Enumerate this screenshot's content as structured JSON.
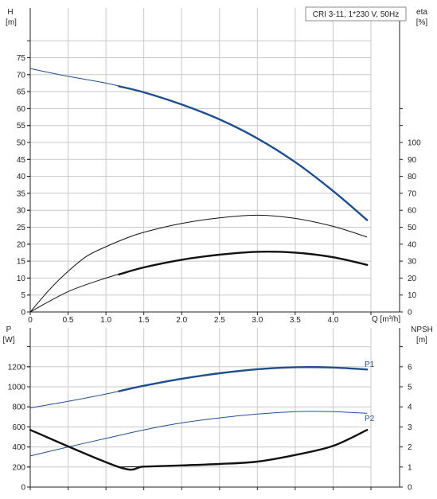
{
  "chart_data": [
    {
      "type": "line",
      "title": "CRI 3-11, 1*230 V, 50Hz",
      "xlabel": "Q [m³/h]",
      "y_left_label": [
        "H",
        "[m]"
      ],
      "y_right_label": [
        "eta",
        "[%]"
      ],
      "xlim": [
        0,
        4.5
      ],
      "ylim_left": [
        0,
        80
      ],
      "ylim_right": [
        0,
        120
      ],
      "x_ticks": [
        "0",
        "0.5",
        "1.0",
        "1.5",
        "2.0",
        "2.5",
        "3.0",
        "3.5",
        "4.0"
      ],
      "y_left_ticks": [
        0,
        5,
        10,
        15,
        20,
        25,
        30,
        35,
        40,
        45,
        50,
        55,
        60,
        65,
        70,
        75
      ],
      "y_right_ticks": [
        0,
        10,
        20,
        30,
        40,
        50,
        60,
        70,
        80,
        90,
        100
      ],
      "grid": true,
      "series": [
        {
          "axis": "left",
          "color": "#1f4e8c",
          "thick_from": 1.17,
          "points": [
            [
              0,
              71.8
            ],
            [
              0.5,
              69.5
            ],
            [
              1.0,
              67.5
            ],
            [
              1.5,
              64.8
            ],
            [
              2.0,
              61.2
            ],
            [
              2.5,
              56.8
            ],
            [
              3.0,
              51.2
            ],
            [
              3.5,
              44.2
            ],
            [
              4.0,
              35.7
            ],
            [
              4.45,
              27.1
            ]
          ]
        },
        {
          "axis": "right",
          "color": "#111111",
          "thick_from": 99,
          "points": [
            [
              0,
              0
            ],
            [
              0.25,
              13
            ],
            [
              0.5,
              24
            ],
            [
              0.75,
              33
            ],
            [
              1.0,
              38.5
            ],
            [
              1.25,
              43.2
            ],
            [
              1.5,
              47
            ],
            [
              2.0,
              52.2
            ],
            [
              2.5,
              55.5
            ],
            [
              3.0,
              57.1
            ],
            [
              3.5,
              55.2
            ],
            [
              4.0,
              50.5
            ],
            [
              4.45,
              44.2
            ]
          ]
        },
        {
          "axis": "right",
          "color": "#111111",
          "thick_from": 1.17,
          "points": [
            [
              0,
              0
            ],
            [
              0.5,
              12
            ],
            [
              1.0,
              20
            ],
            [
              1.5,
              26.3
            ],
            [
              2.0,
              30.8
            ],
            [
              2.5,
              33.8
            ],
            [
              3.0,
              35.5
            ],
            [
              3.5,
              35
            ],
            [
              4.0,
              32.3
            ],
            [
              4.45,
              27.8
            ]
          ]
        }
      ]
    },
    {
      "type": "line",
      "y_left_label": [
        "P",
        "[W]"
      ],
      "y_right_label": [
        "NPSH",
        "[m]"
      ],
      "xlim": [
        0,
        4.5
      ],
      "ylim_left": [
        0,
        1400
      ],
      "ylim_right": [
        0,
        7
      ],
      "y_left_ticks": [
        0,
        200,
        400,
        600,
        800,
        1000,
        1200
      ],
      "y_right_ticks": [
        0,
        1,
        2,
        3,
        4,
        5,
        6
      ],
      "grid": true,
      "series": [
        {
          "name": "P1",
          "axis": "left",
          "color": "#1f4e8c",
          "thick_from": 1.17,
          "points": [
            [
              0,
              790
            ],
            [
              0.5,
              855
            ],
            [
              1.0,
              928
            ],
            [
              1.5,
              1010
            ],
            [
              2.0,
              1080
            ],
            [
              2.5,
              1135
            ],
            [
              3.0,
              1175
            ],
            [
              3.5,
              1195
            ],
            [
              4.0,
              1192
            ],
            [
              4.45,
              1172
            ]
          ]
        },
        {
          "name": "P2",
          "axis": "left",
          "color": "#1f4e8c",
          "thick_from": 99,
          "points": [
            [
              0,
              310
            ],
            [
              0.5,
              400
            ],
            [
              1.0,
              485
            ],
            [
              1.5,
              570
            ],
            [
              2.0,
              640
            ],
            [
              2.5,
              690
            ],
            [
              3.0,
              728
            ],
            [
              3.5,
              752
            ],
            [
              4.0,
              752
            ],
            [
              4.45,
              735
            ]
          ]
        },
        {
          "axis": "right",
          "color": "#111111",
          "thick_from": 0,
          "points": [
            [
              1.17,
              1.0
            ],
            [
              1.5,
              1.02
            ],
            [
              2.0,
              1.08
            ],
            [
              2.5,
              1.15
            ],
            [
              3.0,
              1.27
            ],
            [
              3.5,
              1.6
            ],
            [
              4.0,
              2.05
            ],
            [
              4.45,
              2.85
            ]
          ]
        }
      ]
    }
  ]
}
